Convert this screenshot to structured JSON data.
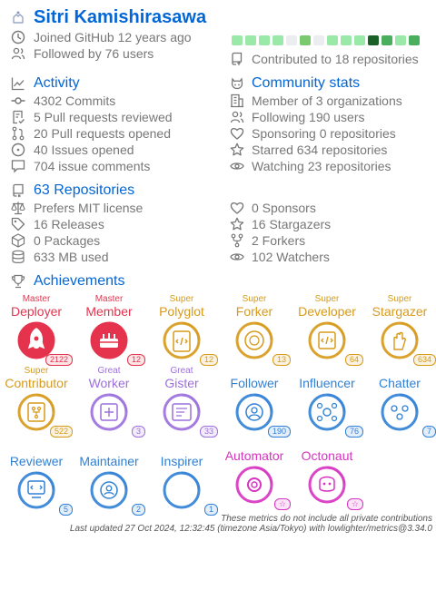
{
  "user": {
    "name": "Sitri Kamishirasawa",
    "joined": "Joined GitHub 12 years ago",
    "followed": "Followed by 76 users",
    "contributed": "Contributed to 18 repositories",
    "calendar_colors": [
      "#9be9a8",
      "#9be9a8",
      "#9be9a8",
      "#9be9a8",
      "#ebedf0",
      "#7bc96f",
      "#ebedf0",
      "#9be9a8",
      "#9be9a8",
      "#9be9a8",
      "#196127",
      "#49af5d",
      "#9be9a8",
      "#49af5d"
    ]
  },
  "activity": {
    "title": "Activity",
    "items": [
      "4302 Commits",
      "5 Pull requests reviewed",
      "20 Pull requests opened",
      "40 Issues opened",
      "704 issue comments"
    ]
  },
  "community": {
    "title": "Community stats",
    "items": [
      "Member of 3 organizations",
      "Following 190 users",
      "Sponsoring 0 repositories",
      "Starred 634 repositories",
      "Watching 23 repositories"
    ]
  },
  "repositories": {
    "title": "63 Repositories",
    "left": [
      "Prefers MIT license",
      "16 Releases",
      "0 Packages",
      "633 MB used"
    ],
    "right": [
      "0 Sponsors",
      "16 Stargazers",
      "2 Forkers",
      "102 Watchers"
    ]
  },
  "achievements": {
    "title": "Achievements",
    "items": [
      {
        "rank": "Master",
        "title": "Deployer",
        "count": "2122",
        "color": "#e5334d",
        "icon": "rocket-icon"
      },
      {
        "rank": "Master",
        "title": "Member",
        "count": "12",
        "color": "#e5334d",
        "icon": "cake-icon"
      },
      {
        "rank": "Super",
        "title": "Polyglot",
        "count": "12",
        "color": "#d79a1a",
        "icon": "code-cards-icon"
      },
      {
        "rank": "Super",
        "title": "Forker",
        "count": "13",
        "color": "#d79a1a",
        "icon": "plate-icon"
      },
      {
        "rank": "Super",
        "title": "Developer",
        "count": "64",
        "color": "#d79a1a",
        "icon": "code-file-icon"
      },
      {
        "rank": "Super",
        "title": "Stargazer",
        "count": "634",
        "color": "#d79a1a",
        "icon": "hand-stars-icon"
      },
      {
        "rank": "Super",
        "title": "Contributor",
        "count": "522",
        "color": "#d79a1a",
        "icon": "fork-doc-icon"
      },
      {
        "rank": "Great",
        "title": "Worker",
        "count": "3",
        "color": "#9c6fdd",
        "icon": "worker-icon"
      },
      {
        "rank": "Great",
        "title": "Gister",
        "count": "33",
        "color": "#9c6fdd",
        "icon": "gist-icon"
      },
      {
        "rank": "",
        "title": "Follower",
        "count": "190",
        "color": "#2f80d6",
        "icon": "follower-icon"
      },
      {
        "rank": "",
        "title": "Influencer",
        "count": "76",
        "color": "#2f80d6",
        "icon": "network-icon"
      },
      {
        "rank": "",
        "title": "Chatter",
        "count": "7",
        "color": "#2f80d6",
        "icon": "chat-people-icon"
      },
      {
        "rank": "",
        "title": "Reviewer",
        "count": "5",
        "color": "#2f80d6",
        "icon": "reviewer-icon"
      },
      {
        "rank": "",
        "title": "Maintainer",
        "count": "2",
        "color": "#2f80d6",
        "icon": "maintainer-icon"
      },
      {
        "rank": "",
        "title": "Inspirer",
        "count": "1",
        "color": "#2f80d6",
        "icon": "inspirer-icon"
      },
      {
        "rank": "",
        "title": "Automator",
        "count": "☆",
        "color": "#d633c0",
        "icon": "gears-icon"
      },
      {
        "rank": "",
        "title": "Octonaut",
        "count": "☆",
        "color": "#d633c0",
        "icon": "octonaut-icon"
      }
    ]
  },
  "footer": {
    "line1": "These metrics do not include all private contributions",
    "line2": "Last updated 27 Oct 2024, 12:32:45 (timezone Asia/Tokyo) with lowlighter/metrics@3.34.0"
  }
}
